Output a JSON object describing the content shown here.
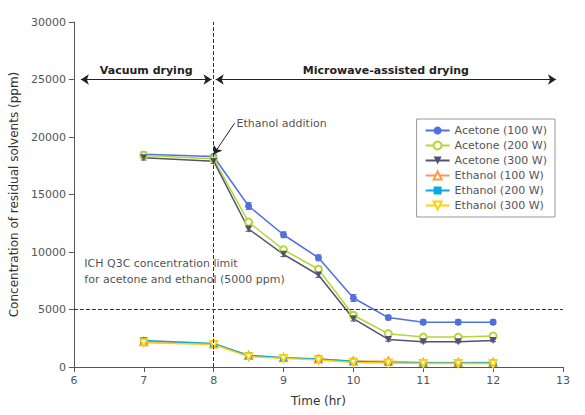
{
  "chart_data": {
    "type": "line",
    "x": [
      7,
      8,
      8.5,
      9,
      9.5,
      10,
      10.5,
      11,
      11.5,
      12
    ],
    "series": [
      {
        "name": "Acetone (100 W)",
        "marker": "circle",
        "values": [
          18500,
          18300,
          14000,
          11500,
          9500,
          6000,
          4300,
          3900,
          3900,
          3900
        ],
        "errors": [
          200,
          200,
          300,
          250,
          250,
          300,
          200,
          200,
          200,
          200
        ]
      },
      {
        "name": "Acetone (200 W)",
        "marker": "circle-open",
        "values": [
          18400,
          18100,
          12600,
          10200,
          8500,
          4500,
          2900,
          2600,
          2600,
          2700
        ],
        "errors": [
          200,
          200,
          250,
          250,
          250,
          250,
          150,
          150,
          150,
          150
        ]
      },
      {
        "name": "Acetone (300 W)",
        "marker": "triangle-down",
        "values": [
          18200,
          17900,
          12000,
          9800,
          8000,
          4200,
          2400,
          2200,
          2200,
          2300
        ],
        "errors": [
          200,
          200,
          200,
          200,
          200,
          200,
          150,
          100,
          100,
          100
        ]
      },
      {
        "name": "Ethanol (100 W)",
        "marker": "triangle-open",
        "values": [
          2200,
          2000,
          1000,
          800,
          700,
          500,
          500,
          400,
          400,
          400
        ],
        "errors": [
          150,
          150,
          100,
          80,
          80,
          60,
          60,
          50,
          50,
          50
        ]
      },
      {
        "name": "Ethanol (200 W)",
        "marker": "square",
        "values": [
          2300,
          2050,
          1000,
          800,
          700,
          500,
          400,
          350,
          350,
          350
        ],
        "errors": [
          150,
          150,
          100,
          80,
          80,
          60,
          60,
          50,
          50,
          50
        ]
      },
      {
        "name": "Ethanol (300 W)",
        "marker": "triangle-down-open",
        "values": [
          2100,
          1950,
          900,
          750,
          600,
          400,
          350,
          300,
          300,
          280
        ],
        "errors": [
          150,
          150,
          100,
          80,
          80,
          60,
          60,
          50,
          50,
          50
        ]
      }
    ],
    "xlim": [
      6,
      13
    ],
    "xticks": [
      6,
      7,
      8,
      9,
      10,
      11,
      12,
      13
    ],
    "ylim": [
      0,
      30000
    ],
    "yticks": [
      0,
      5000,
      10000,
      15000,
      20000,
      25000,
      30000
    ],
    "xlabel": "Time (hr)",
    "ylabel": "Concentration of residual solvents (ppm)",
    "vline_x": 8,
    "hline_y": 5000,
    "annotations": [
      {
        "text": "ICH Q3C concentration limit",
        "x": 6.12,
        "y": 9000
      },
      {
        "text": "for acetone and ethanol (5000 ppm)",
        "x": 6.12,
        "y": 7600
      },
      {
        "text": "Ethanol addition",
        "x": 8.3,
        "y": 21200,
        "arrow_to": [
          8.0,
          18500
        ]
      },
      {
        "text": "Vacuum drying",
        "x": [
          6.1,
          7.97
        ],
        "y": 25000
      },
      {
        "text": "Microwave-assisted drying",
        "x": [
          8.03,
          12.9
        ],
        "y": 25000
      }
    ],
    "legend": "upper right",
    "grid": false
  }
}
